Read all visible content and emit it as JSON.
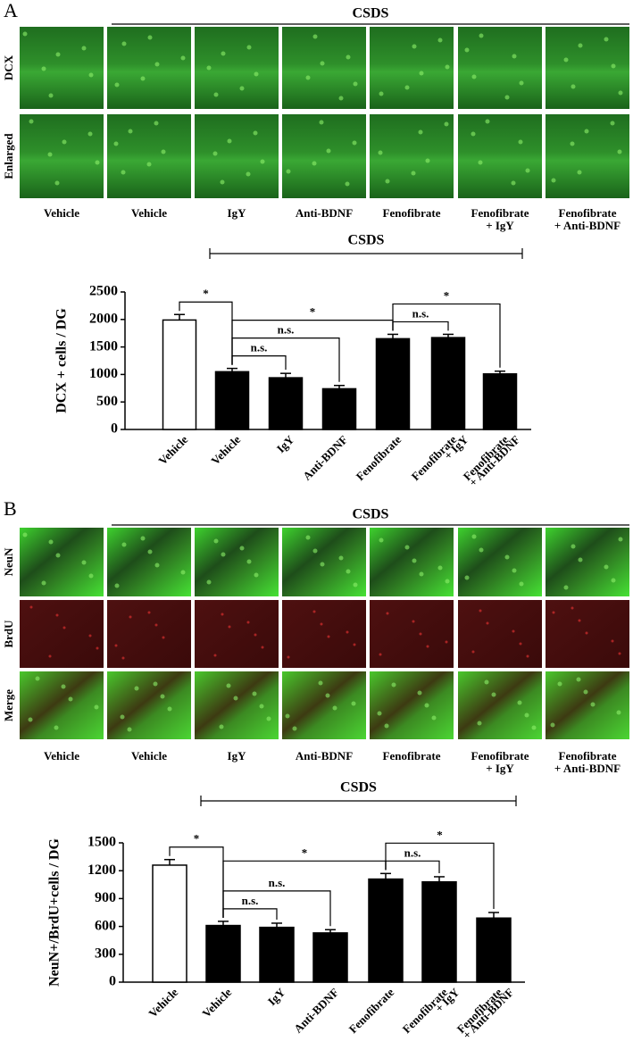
{
  "panels": [
    {
      "label": "A",
      "group_label": "CSDS",
      "rows": [
        "DCX",
        "Enlarged"
      ],
      "columns": [
        [
          "Vehicle"
        ],
        [
          "Vehicle"
        ],
        [
          "IgY"
        ],
        [
          "Anti-BDNF"
        ],
        [
          "Fenofibrate"
        ],
        [
          "Fenofibrate",
          "+ IgY"
        ],
        [
          "Fenofibrate",
          "+ Anti-BDNF"
        ]
      ]
    },
    {
      "label": "B",
      "group_label": "CSDS",
      "rows": [
        "NeuN",
        "BrdU",
        "Merge"
      ],
      "columns": [
        [
          "Vehicle"
        ],
        [
          "Vehicle"
        ],
        [
          "IgY"
        ],
        [
          "Anti-BDNF"
        ],
        [
          "Fenofibrate"
        ],
        [
          "Fenofibrate",
          "+ IgY"
        ],
        [
          "Fenofibrate",
          "+ Anti-BDNF"
        ]
      ]
    }
  ],
  "chart_data": [
    {
      "type": "bar",
      "ylabel": "DCX + cells / DG",
      "categories": [
        [
          "Vehicle"
        ],
        [
          "Vehicle"
        ],
        [
          "IgY"
        ],
        [
          "Anti-BDNF"
        ],
        [
          "Fenofibrate"
        ],
        [
          "Fenofibrate",
          "+ IgY"
        ],
        [
          "Fenofibrate",
          "+ Anti-BDNF"
        ]
      ],
      "values": [
        1990,
        1050,
        940,
        740,
        1650,
        1670,
        1010
      ],
      "errors": [
        100,
        60,
        80,
        60,
        80,
        60,
        50
      ],
      "colors": [
        "#ffffff",
        "#000000",
        "#000000",
        "#000000",
        "#000000",
        "#000000",
        "#000000"
      ],
      "ylim": [
        0,
        2500
      ],
      "yticks": [
        0,
        500,
        1000,
        1500,
        2000,
        2500
      ],
      "group_label": "CSDS",
      "group_span": [
        1,
        6
      ],
      "comparisons": [
        {
          "label": "*",
          "groups": [
            0,
            1
          ]
        },
        {
          "label": "n.s.",
          "groups": [
            1,
            2
          ]
        },
        {
          "label": "n.s.",
          "groups": [
            1,
            3
          ]
        },
        {
          "label": "*",
          "groups": [
            1,
            4
          ]
        },
        {
          "label": "n.s.",
          "groups": [
            4,
            5
          ]
        },
        {
          "label": "*",
          "groups": [
            4,
            6
          ]
        }
      ]
    },
    {
      "type": "bar",
      "ylabel": "NeuN+/BrdU+cells / DG",
      "categories": [
        [
          "Vehicle"
        ],
        [
          "Vehicle"
        ],
        [
          "IgY"
        ],
        [
          "Anti-BDNF"
        ],
        [
          "Fenofibrate"
        ],
        [
          "Fenofibrate",
          "+ IgY"
        ],
        [
          "Fenofibrate",
          "+ Anti-BDNF"
        ]
      ],
      "values": [
        1260,
        610,
        590,
        530,
        1110,
        1080,
        690
      ],
      "errors": [
        60,
        45,
        45,
        35,
        60,
        55,
        60
      ],
      "colors": [
        "#ffffff",
        "#000000",
        "#000000",
        "#000000",
        "#000000",
        "#000000",
        "#000000"
      ],
      "ylim": [
        0,
        1500
      ],
      "yticks": [
        0,
        300,
        600,
        900,
        1200,
        1500
      ],
      "group_label": "CSDS",
      "group_span": [
        1,
        6
      ],
      "comparisons": [
        {
          "label": "*",
          "groups": [
            0,
            1
          ]
        },
        {
          "label": "n.s.",
          "groups": [
            1,
            2
          ]
        },
        {
          "label": "n.s.",
          "groups": [
            1,
            3
          ]
        },
        {
          "label": "*",
          "groups": [
            1,
            4
          ]
        },
        {
          "label": "n.s.",
          "groups": [
            4,
            5
          ]
        },
        {
          "label": "*",
          "groups": [
            4,
            6
          ]
        }
      ]
    }
  ]
}
